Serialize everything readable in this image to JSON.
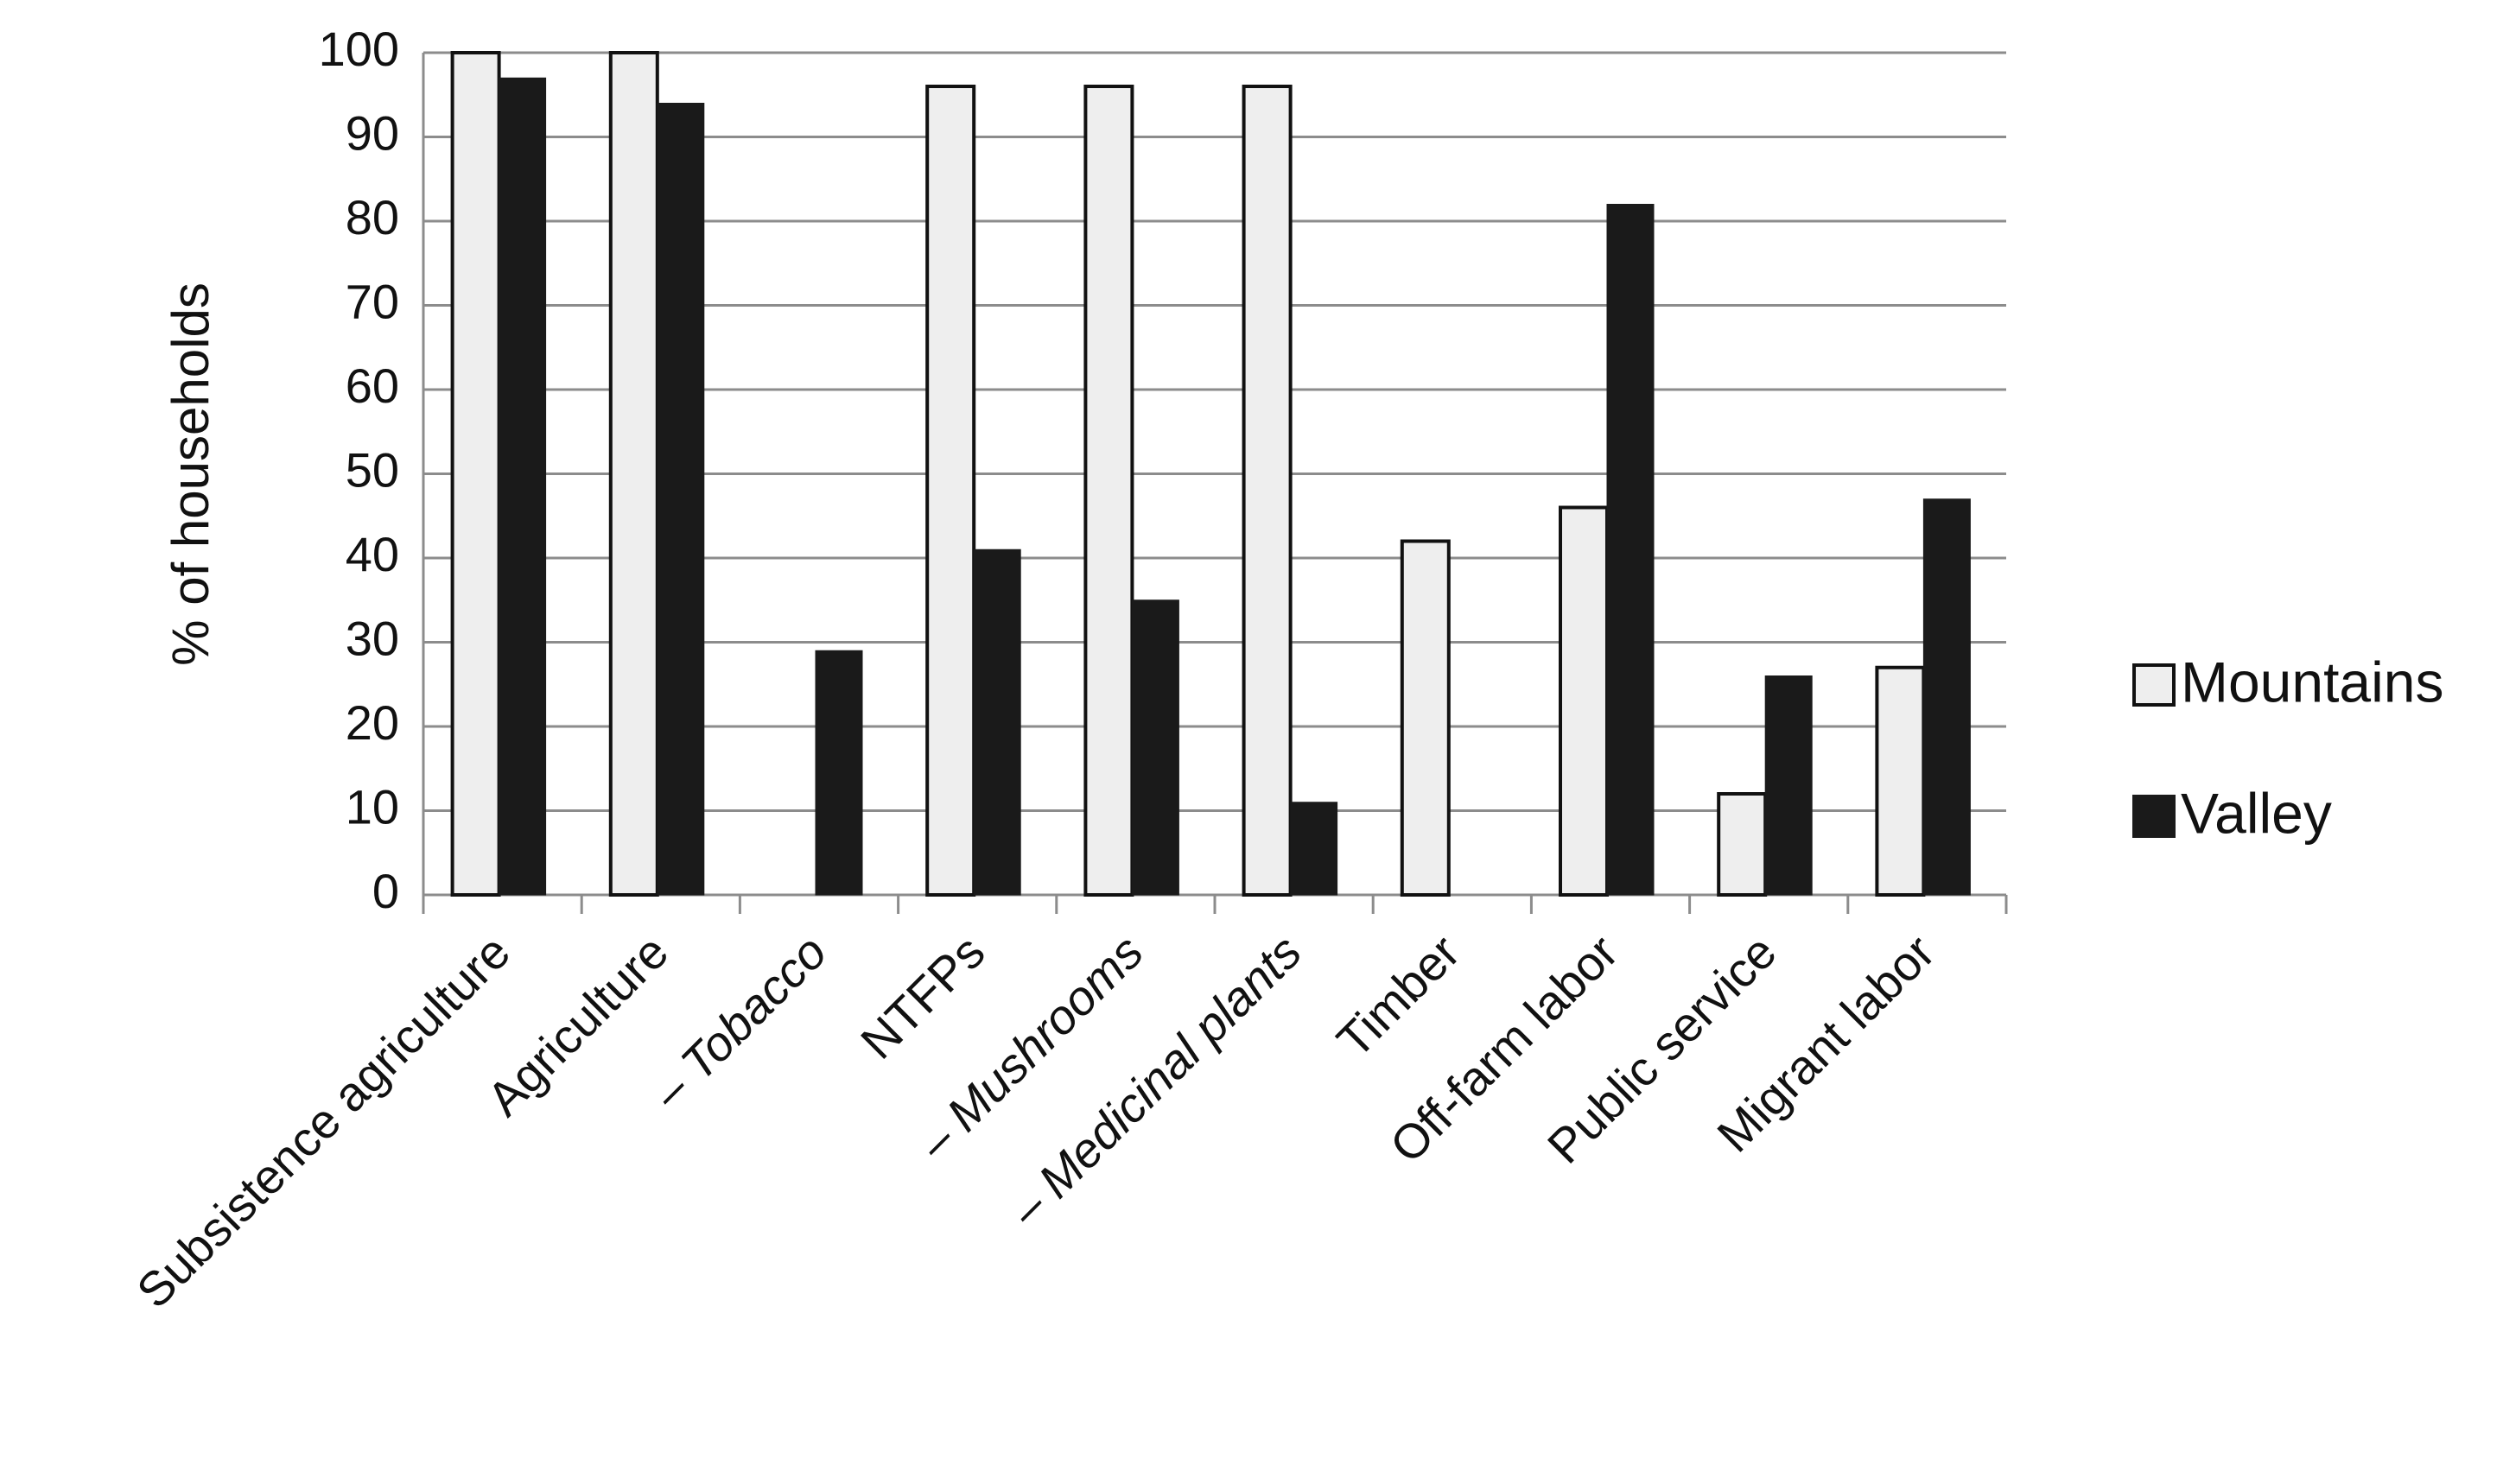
{
  "chart_data": {
    "type": "bar",
    "y_label": "% of households",
    "categories": [
      "Subsistence agriculture",
      "Agriculture",
      "– Tobacco",
      "NTFPs",
      "– Mushrooms",
      "– Medicinal plants",
      "Timber",
      "Off-farm labor",
      "Public service",
      "Migrant labor"
    ],
    "category_style": [
      "normal",
      "normal",
      "italic",
      "normal",
      "italic",
      "italic",
      "normal",
      "normal",
      "normal",
      "normal"
    ],
    "series": [
      {
        "name": "Mountains",
        "color": "#eeeeee",
        "values": [
          100,
          100,
          0,
          96,
          96,
          96,
          42,
          46,
          12,
          27
        ]
      },
      {
        "name": "Valley",
        "color": "#1a1a1a",
        "values": [
          97,
          94,
          29,
          41,
          35,
          11,
          0,
          82,
          26,
          47
        ]
      }
    ],
    "ylim": [
      0,
      100
    ],
    "yticks": [
      0,
      10,
      20,
      30,
      40,
      50,
      60,
      70,
      80,
      90,
      100
    ],
    "grid": true,
    "legend": "right"
  }
}
